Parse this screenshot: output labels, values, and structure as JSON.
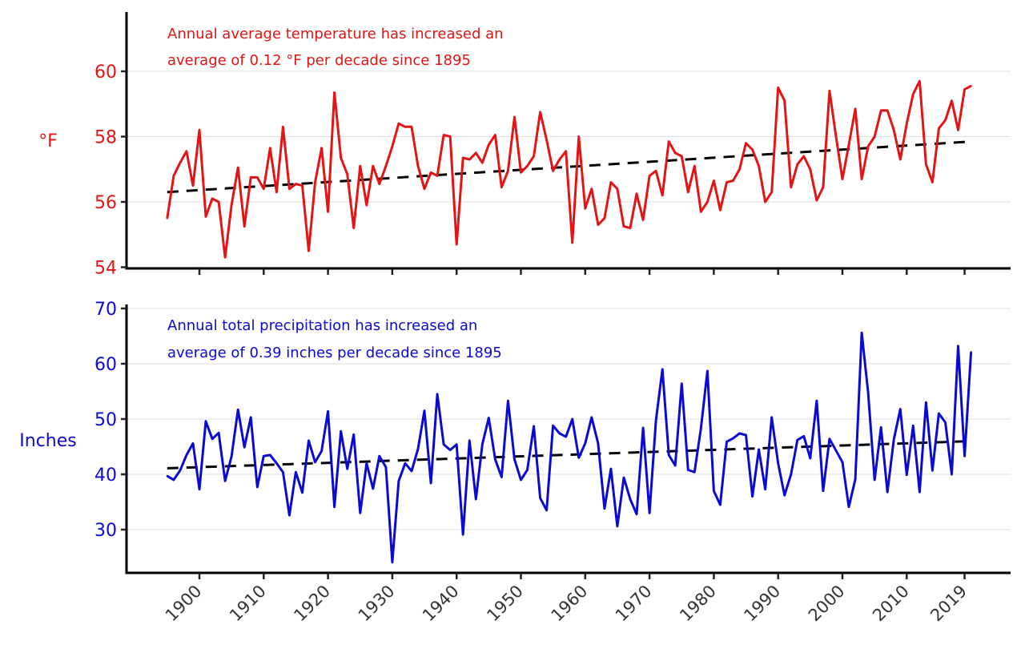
{
  "chart_data": [
    {
      "type": "line",
      "name": "temperature",
      "color": "#e31414",
      "trend_color": "#000000",
      "annotation": [
        "Annual average temperature has increased an",
        "average of 0.12 °F per decade since 1895"
      ],
      "ylabel": "°F",
      "ylim": [
        54,
        61.8
      ],
      "yticks": [
        54,
        56,
        58,
        60
      ],
      "ytick_labels": [
        "54",
        "56",
        "58",
        "60"
      ],
      "grid": true,
      "x": [
        1895,
        1896,
        1897,
        1898,
        1899,
        1900,
        1901,
        1902,
        1903,
        1904,
        1905,
        1906,
        1907,
        1908,
        1909,
        1910,
        1911,
        1912,
        1913,
        1914,
        1915,
        1916,
        1917,
        1918,
        1919,
        1920,
        1921,
        1922,
        1923,
        1924,
        1925,
        1926,
        1927,
        1928,
        1929,
        1930,
        1931,
        1932,
        1933,
        1934,
        1935,
        1936,
        1937,
        1938,
        1939,
        1940,
        1941,
        1942,
        1943,
        1944,
        1945,
        1946,
        1947,
        1948,
        1949,
        1950,
        1951,
        1952,
        1953,
        1954,
        1955,
        1956,
        1957,
        1958,
        1959,
        1960,
        1961,
        1962,
        1963,
        1964,
        1965,
        1966,
        1967,
        1968,
        1969,
        1970,
        1971,
        1972,
        1973,
        1974,
        1975,
        1976,
        1977,
        1978,
        1979,
        1980,
        1981,
        1982,
        1983,
        1984,
        1985,
        1986,
        1987,
        1988,
        1989,
        1990,
        1991,
        1992,
        1993,
        1994,
        1995,
        1996,
        1997,
        1998,
        1999,
        2000,
        2001,
        2002,
        2003,
        2004,
        2005,
        2006,
        2007,
        2008,
        2009,
        2010,
        2011,
        2012,
        2013,
        2014,
        2015,
        2016,
        2017,
        2018,
        2019,
        2020
      ],
      "values": [
        55.5,
        56.8,
        57.2,
        57.55,
        56.5,
        58.2,
        55.55,
        56.1,
        56.0,
        54.3,
        55.9,
        57.05,
        55.25,
        56.75,
        56.75,
        56.4,
        57.65,
        56.3,
        58.3,
        56.4,
        56.55,
        56.5,
        54.5,
        56.6,
        57.65,
        55.7,
        59.35,
        57.35,
        56.85,
        55.2,
        57.1,
        55.9,
        57.1,
        56.55,
        57.1,
        57.7,
        58.4,
        58.3,
        58.3,
        57.1,
        56.4,
        56.9,
        56.8,
        58.05,
        58.0,
        54.7,
        57.35,
        57.3,
        57.5,
        57.2,
        57.75,
        58.05,
        56.45,
        56.95,
        58.6,
        56.9,
        57.1,
        57.4,
        58.75,
        57.9,
        56.95,
        57.3,
        57.55,
        54.75,
        58.0,
        55.8,
        56.4,
        55.3,
        55.5,
        56.6,
        56.4,
        55.25,
        55.2,
        56.25,
        55.45,
        56.8,
        56.95,
        56.2,
        57.85,
        57.5,
        57.4,
        56.3,
        57.1,
        55.7,
        56.0,
        56.65,
        55.75,
        56.6,
        56.65,
        57.0,
        57.8,
        57.6,
        57.1,
        56.0,
        56.3,
        59.5,
        59.1,
        56.45,
        57.15,
        57.4,
        57.0,
        56.05,
        56.45,
        59.4,
        58.0,
        56.7,
        57.75,
        58.85,
        56.7,
        57.7,
        58.0,
        58.8,
        58.8,
        58.2,
        57.3,
        58.4,
        59.3,
        59.7,
        57.15,
        56.6,
        58.25,
        58.5,
        59.1,
        58.2,
        59.45,
        59.55
      ],
      "trend": {
        "start": [
          1895,
          56.3
        ],
        "end": [
          2020,
          57.85
        ],
        "rate_per_decade": 0.12
      }
    },
    {
      "type": "line",
      "name": "precipitation",
      "color": "#0a0ad2",
      "trend_color": "#000000",
      "annotation": [
        "Annual total precipitation has increased an",
        "average of 0.39 inches per decade since 1895"
      ],
      "ylabel": "Inches",
      "ylim": [
        22.5,
        70
      ],
      "yticks": [
        30,
        40,
        50,
        60,
        70
      ],
      "ytick_labels": [
        "30",
        "40",
        "50",
        "60",
        "70"
      ],
      "grid": true,
      "x": [
        1895,
        1896,
        1897,
        1898,
        1899,
        1900,
        1901,
        1902,
        1903,
        1904,
        1905,
        1906,
        1907,
        1908,
        1909,
        1910,
        1911,
        1912,
        1913,
        1914,
        1915,
        1916,
        1917,
        1918,
        1919,
        1920,
        1921,
        1922,
        1923,
        1924,
        1925,
        1926,
        1927,
        1928,
        1929,
        1930,
        1931,
        1932,
        1933,
        1934,
        1935,
        1936,
        1937,
        1938,
        1939,
        1940,
        1941,
        1942,
        1943,
        1944,
        1945,
        1946,
        1947,
        1948,
        1949,
        1950,
        1951,
        1952,
        1953,
        1954,
        1955,
        1956,
        1957,
        1958,
        1959,
        1960,
        1961,
        1962,
        1963,
        1964,
        1965,
        1966,
        1967,
        1968,
        1969,
        1970,
        1971,
        1972,
        1973,
        1974,
        1975,
        1976,
        1977,
        1978,
        1979,
        1980,
        1981,
        1982,
        1983,
        1984,
        1985,
        1986,
        1987,
        1988,
        1989,
        1990,
        1991,
        1992,
        1993,
        1994,
        1995,
        1996,
        1997,
        1998,
        1999,
        2000,
        2001,
        2002,
        2003,
        2004,
        2005,
        2006,
        2007,
        2008,
        2009,
        2010,
        2011,
        2012,
        2013,
        2014,
        2015,
        2016,
        2017,
        2018,
        2019,
        2020
      ],
      "values": [
        39.7,
        39.0,
        40.7,
        43.5,
        45.6,
        37.3,
        49.6,
        46.4,
        47.5,
        38.8,
        43.2,
        51.7,
        44.9,
        50.3,
        37.7,
        43.3,
        43.5,
        42.0,
        40.4,
        32.6,
        40.4,
        36.7,
        46.1,
        42.2,
        44.2,
        51.4,
        34.1,
        47.8,
        41.0,
        47.2,
        33.0,
        42.0,
        37.4,
        43.3,
        41.3,
        24.1,
        38.8,
        42.0,
        40.6,
        44.6,
        51.5,
        38.4,
        54.5,
        45.4,
        44.4,
        45.4,
        29.1,
        46.1,
        35.5,
        45.4,
        50.2,
        42.7,
        39.5,
        53.3,
        42.7,
        39.0,
        40.8,
        48.7,
        35.7,
        33.5,
        48.8,
        47.4,
        46.8,
        50.0,
        43.0,
        45.6,
        50.3,
        45.6,
        33.8,
        41.0,
        30.6,
        39.4,
        35.5,
        32.8,
        48.4,
        33.0,
        49.7,
        59.0,
        43.5,
        41.6,
        56.4,
        40.8,
        40.4,
        48.3,
        58.7,
        37.0,
        34.5,
        45.9,
        46.5,
        47.4,
        47.1,
        36.0,
        44.5,
        37.3,
        50.3,
        42.0,
        36.2,
        40.0,
        46.2,
        46.9,
        42.9,
        53.3,
        37.0,
        46.4,
        44.3,
        42.2,
        34.1,
        39.1,
        65.6,
        54.8,
        39.0,
        48.5,
        36.8,
        46.3,
        51.8,
        39.9,
        48.8,
        36.8,
        53.0,
        40.7,
        51.0,
        49.4,
        40.0,
        63.2,
        43.3,
        62.1
      ],
      "trend": {
        "start": [
          1895,
          41.1
        ],
        "end": [
          2020,
          46.0
        ],
        "rate_per_decade": 0.39
      }
    }
  ],
  "xaxis": {
    "ticks": [
      1900,
      1910,
      1920,
      1930,
      1940,
      1950,
      1960,
      1970,
      1980,
      1990,
      2000,
      2010,
      2019
    ],
    "tick_labels": [
      "1900",
      "1910",
      "1920",
      "1930",
      "1940",
      "1950",
      "1960",
      "1970",
      "1980",
      "1990",
      "2000",
      "2010",
      "2019"
    ],
    "xlim": [
      1890,
      2027
    ]
  }
}
